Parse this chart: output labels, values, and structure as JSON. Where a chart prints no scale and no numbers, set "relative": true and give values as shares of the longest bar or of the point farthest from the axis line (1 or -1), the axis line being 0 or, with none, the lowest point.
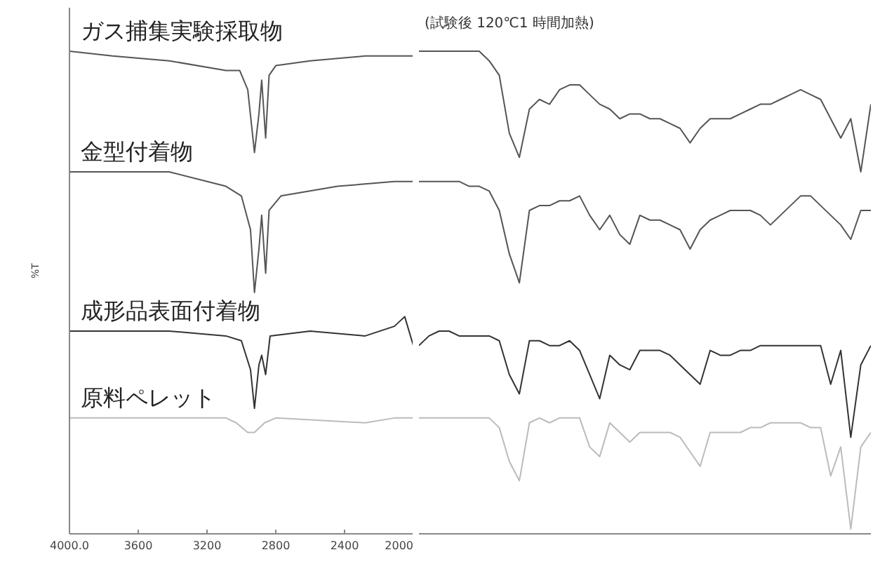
{
  "chart_data": [
    {
      "type": "line",
      "relative": true,
      "ylabel": "%T",
      "legend": false,
      "grid": false,
      "xlim": [
        4000,
        2000
      ],
      "xticks": [
        {
          "value": 4000,
          "label": "4000.0"
        },
        3600,
        3200,
        2800,
        2400,
        2000
      ],
      "series": [
        {
          "name": "ガス捕集実験採取物",
          "color": "#555555",
          "x": [
            4000,
            3750,
            3420,
            3090,
            3010,
            2963,
            2924,
            2898,
            2882,
            2859,
            2839,
            2800,
            2600,
            2280,
            2110,
            2000
          ],
          "values": [
            1.0,
            0.99,
            0.98,
            0.96,
            0.96,
            0.92,
            0.79,
            0.87,
            0.94,
            0.82,
            0.95,
            0.97,
            0.98,
            0.99,
            0.99,
            0.99
          ]
        },
        {
          "name": "金型付着物",
          "color": "#555555",
          "x": [
            4000,
            3420,
            3090,
            3000,
            2947,
            2924,
            2898,
            2882,
            2859,
            2839,
            2770,
            2440,
            2110,
            2000
          ],
          "values": [
            0.75,
            0.75,
            0.72,
            0.7,
            0.63,
            0.5,
            0.59,
            0.66,
            0.54,
            0.67,
            0.7,
            0.72,
            0.73,
            0.73
          ]
        },
        {
          "name": "成形品表面付着物",
          "color": "#333333",
          "x": [
            4000,
            3420,
            3090,
            3000,
            2947,
            2924,
            2898,
            2882,
            2859,
            2833,
            2600,
            2280,
            2110,
            2050,
            2000
          ],
          "values": [
            0.42,
            0.42,
            0.41,
            0.4,
            0.34,
            0.26,
            0.35,
            0.37,
            0.33,
            0.41,
            0.42,
            0.41,
            0.43,
            0.45,
            0.39
          ]
        },
        {
          "name": "原料ペレット",
          "color": "#bbbbbb",
          "x": [
            4000,
            3090,
            3030,
            2963,
            2924,
            2865,
            2800,
            2280,
            2110,
            2000
          ],
          "values": [
            0.24,
            0.24,
            0.23,
            0.21,
            0.21,
            0.23,
            0.24,
            0.23,
            0.24,
            0.24
          ]
        }
      ]
    },
    {
      "type": "line",
      "relative": true,
      "legend": false,
      "grid": false,
      "annotations": [
        "(試験後 120℃1 時間加熱)"
      ],
      "categories": [
        null,
        null,
        null,
        null,
        null,
        null,
        null,
        null,
        null,
        null,
        null,
        null,
        null,
        null,
        null,
        null,
        null,
        null,
        null,
        null,
        null,
        null,
        null,
        null,
        null,
        null,
        null,
        null,
        null,
        null,
        null,
        null,
        null,
        null,
        null,
        null,
        null,
        null,
        null,
        null,
        null,
        null,
        null,
        null,
        null,
        null
      ],
      "series": [
        {
          "color": "#555555",
          "values": [
            1.0,
            1.0,
            1.0,
            1.0,
            1.0,
            1.0,
            1.0,
            0.98,
            0.95,
            0.83,
            0.78,
            0.88,
            0.9,
            0.89,
            0.92,
            0.93,
            0.93,
            0.91,
            0.89,
            0.88,
            0.86,
            0.87,
            0.87,
            0.86,
            0.86,
            0.85,
            0.84,
            0.81,
            0.84,
            0.86,
            0.86,
            0.86,
            0.87,
            0.88,
            0.89,
            0.89,
            0.9,
            0.91,
            0.92,
            0.91,
            0.9,
            0.86,
            0.82,
            0.86,
            0.75,
            0.89
          ]
        },
        {
          "color": "#555555",
          "values": [
            0.73,
            0.73,
            0.73,
            0.73,
            0.73,
            0.72,
            0.72,
            0.71,
            0.67,
            0.58,
            0.52,
            0.67,
            0.68,
            0.68,
            0.69,
            0.69,
            0.7,
            0.66,
            0.63,
            0.66,
            0.62,
            0.6,
            0.66,
            0.65,
            0.65,
            0.64,
            0.63,
            0.59,
            0.63,
            0.65,
            0.66,
            0.67,
            0.67,
            0.67,
            0.66,
            0.64,
            0.66,
            0.68,
            0.7,
            0.7,
            0.68,
            0.66,
            0.64,
            0.61,
            0.67,
            0.67
          ]
        },
        {
          "color": "#333333",
          "values": [
            0.39,
            0.41,
            0.42,
            0.42,
            0.41,
            0.41,
            0.41,
            0.41,
            0.4,
            0.33,
            0.29,
            0.4,
            0.4,
            0.39,
            0.39,
            0.4,
            0.38,
            0.33,
            0.28,
            0.37,
            0.35,
            0.34,
            0.38,
            0.38,
            0.38,
            0.37,
            0.35,
            0.33,
            0.31,
            0.38,
            0.37,
            0.37,
            0.38,
            0.38,
            0.39,
            0.39,
            0.39,
            0.39,
            0.39,
            0.39,
            0.39,
            0.31,
            0.38,
            0.2,
            0.35,
            0.39
          ]
        },
        {
          "color": "#bbbbbb",
          "values": [
            0.24,
            0.24,
            0.24,
            0.24,
            0.24,
            0.24,
            0.24,
            0.24,
            0.22,
            0.15,
            0.11,
            0.23,
            0.24,
            0.23,
            0.24,
            0.24,
            0.24,
            0.18,
            0.16,
            0.23,
            0.21,
            0.19,
            0.21,
            0.21,
            0.21,
            0.21,
            0.2,
            0.17,
            0.14,
            0.21,
            0.21,
            0.21,
            0.21,
            0.22,
            0.22,
            0.23,
            0.23,
            0.23,
            0.23,
            0.22,
            0.22,
            0.12,
            0.18,
            0.01,
            0.18,
            0.21
          ]
        }
      ]
    }
  ]
}
